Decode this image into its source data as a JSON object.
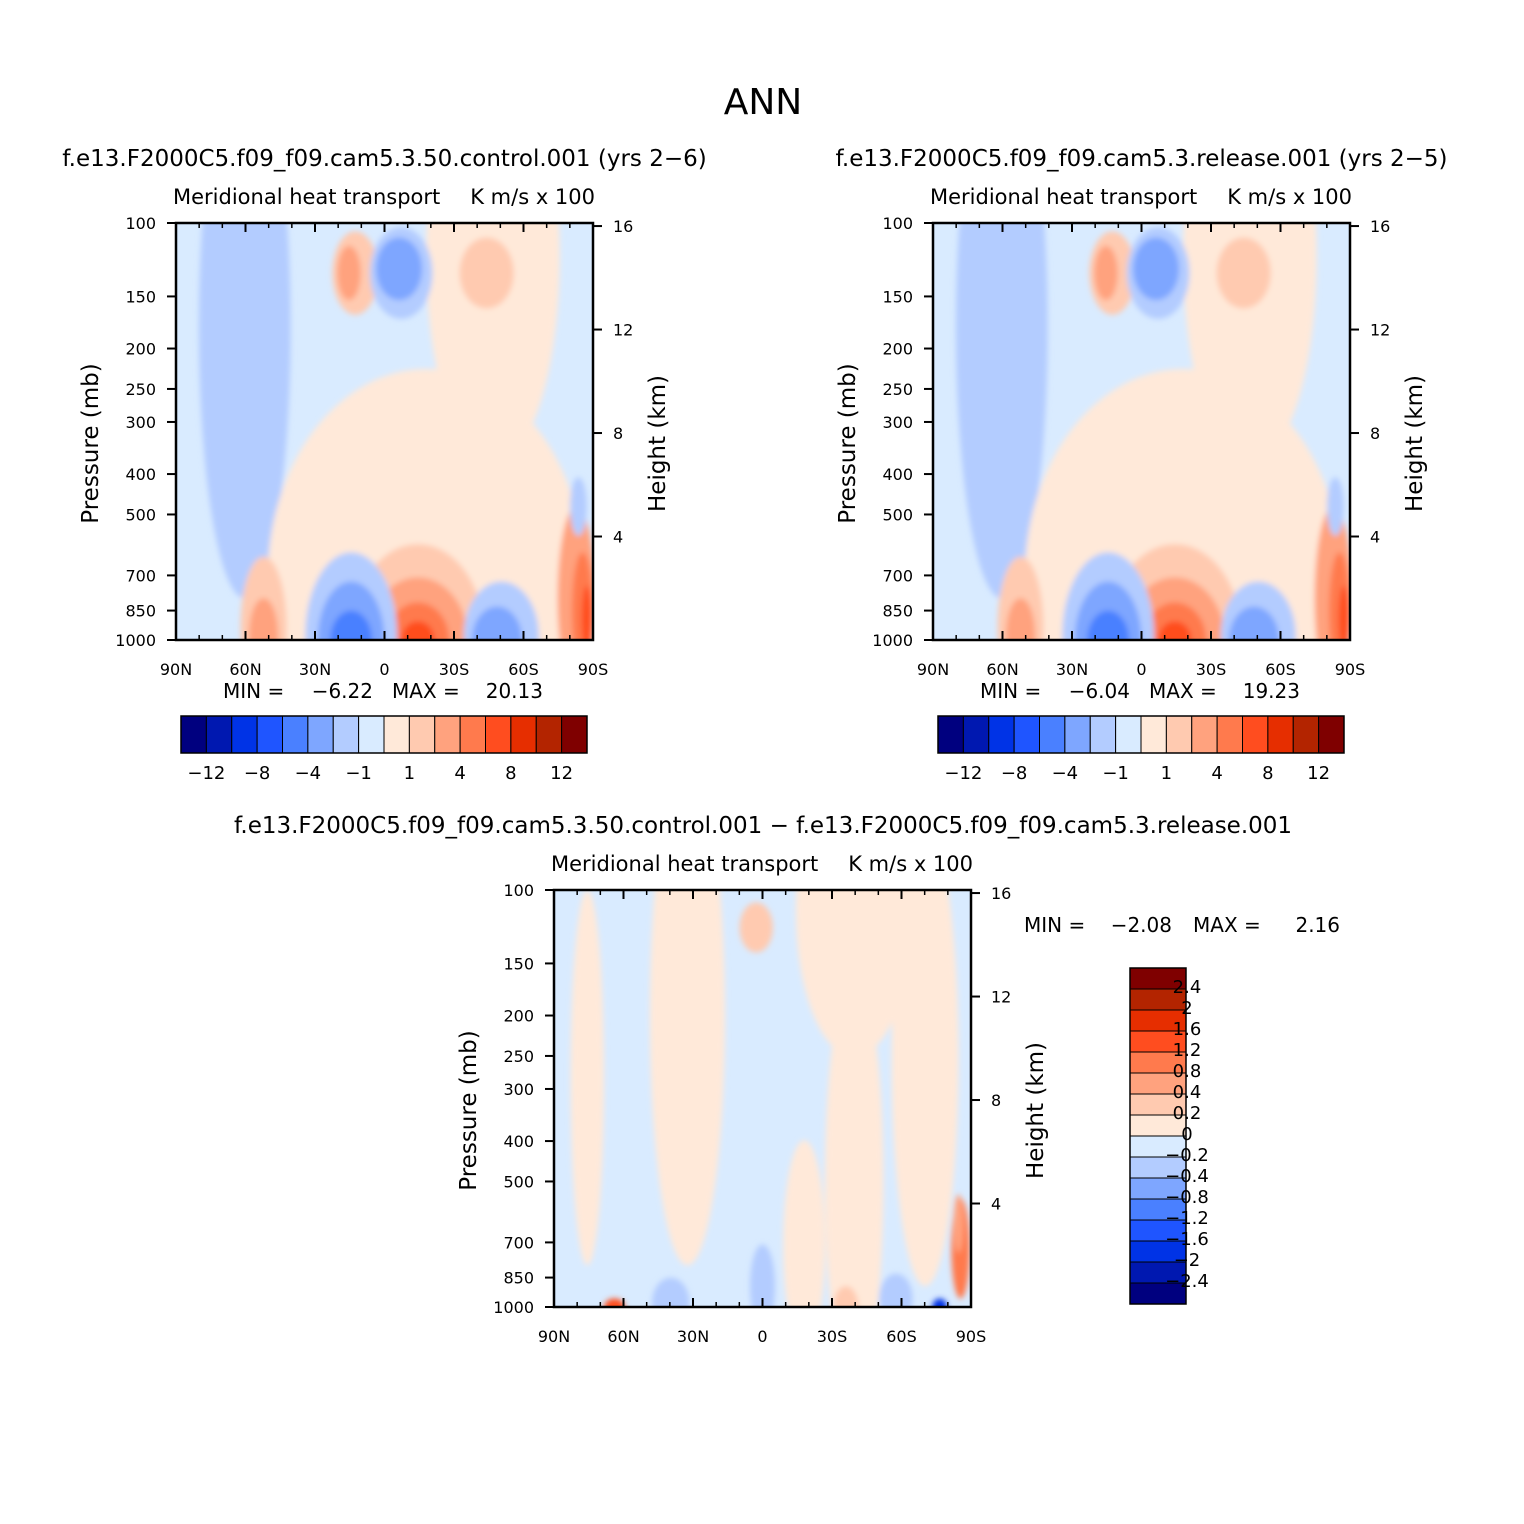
{
  "figure": {
    "title": "ANN"
  },
  "chart_data": [
    {
      "type": "heatmap",
      "title": "f.e13.F2000C5.f09_f09.cam5.3.50.control.001 (yrs 2−6)",
      "left_string": "Meridional heat transport",
      "right_string": "K m/s x 100",
      "ylabel": "Pressure (mb)",
      "y2label": "Height (km)",
      "x_ticks": [
        "90N",
        "60N",
        "30N",
        "0",
        "30S",
        "60S",
        "90S"
      ],
      "y_ticks": [
        "100",
        "150",
        "200",
        "250",
        "300",
        "400",
        "500",
        "700",
        "850",
        "1000"
      ],
      "y2_ticks": [
        "16",
        "12",
        "8",
        "4"
      ],
      "xlim": [
        "90N",
        "90S"
      ],
      "ylim": [
        100,
        1000
      ],
      "stats": {
        "min_label": "MIN =",
        "min": "−6.22",
        "max_label": "MAX =",
        "max": "20.13"
      },
      "levels": [
        -12,
        -8,
        -4,
        -1,
        1,
        4,
        8,
        12
      ],
      "colorbar_labels": [
        "−12",
        "−8",
        "−4",
        "−1",
        "1",
        "4",
        "8",
        "12"
      ],
      "legend_placement": "bottom"
    },
    {
      "type": "heatmap",
      "title": "f.e13.F2000C5.f09_f09.cam5.3.release.001 (yrs 2−5)",
      "left_string": "Meridional heat transport",
      "right_string": "K m/s x 100",
      "ylabel": "Pressure (mb)",
      "y2label": "Height (km)",
      "x_ticks": [
        "90N",
        "60N",
        "30N",
        "0",
        "30S",
        "60S",
        "90S"
      ],
      "y_ticks": [
        "100",
        "150",
        "200",
        "250",
        "300",
        "400",
        "500",
        "700",
        "850",
        "1000"
      ],
      "y2_ticks": [
        "16",
        "12",
        "8",
        "4"
      ],
      "xlim": [
        "90N",
        "90S"
      ],
      "ylim": [
        100,
        1000
      ],
      "stats": {
        "min_label": "MIN =",
        "min": "−6.04",
        "max_label": "MAX =",
        "max": "19.23"
      },
      "levels": [
        -12,
        -8,
        -4,
        -1,
        1,
        4,
        8,
        12
      ],
      "colorbar_labels": [
        "−12",
        "−8",
        "−4",
        "−1",
        "1",
        "4",
        "8",
        "12"
      ],
      "legend_placement": "bottom"
    },
    {
      "type": "heatmap",
      "title": "f.e13.F2000C5.f09_f09.cam5.3.50.control.001 − f.e13.F2000C5.f09_f09.cam5.3.release.001",
      "left_string": "Meridional heat transport",
      "right_string": "K m/s x 100",
      "ylabel": "Pressure (mb)",
      "y2label": "Height (km)",
      "x_ticks": [
        "90N",
        "60N",
        "30N",
        "0",
        "30S",
        "60S",
        "90S"
      ],
      "y_ticks": [
        "100",
        "150",
        "200",
        "250",
        "300",
        "400",
        "500",
        "700",
        "850",
        "1000"
      ],
      "y2_ticks": [
        "16",
        "12",
        "8",
        "4"
      ],
      "xlim": [
        "90N",
        "90S"
      ],
      "ylim": [
        100,
        1000
      ],
      "stats": {
        "min_label": "MIN =",
        "min": "−2.08",
        "max_label": "MAX =",
        "max": "2.16"
      },
      "levels": [
        2.4,
        2,
        1.6,
        1.2,
        0.8,
        0.4,
        0.2,
        0,
        -0.2,
        -0.4,
        -0.8,
        -1.2,
        -1.6,
        -2,
        -2.4
      ],
      "colorbar_labels": [
        "2.4",
        "2",
        "1.6",
        "1.2",
        "0.8",
        "0.4",
        "0.2",
        "0",
        "−0.2",
        "−0.4",
        "−0.8",
        "−1.2",
        "−1.6",
        "−2",
        "−2.4"
      ],
      "legend_placement": "right"
    }
  ],
  "colors": {
    "field_palette": [
      "#00007f",
      "#0018b0",
      "#0033e6",
      "#1f55ff",
      "#4a80ff",
      "#7ea6ff",
      "#b3ccff",
      "#d9ebff",
      "#ffe9d9",
      "#ffcab0",
      "#ffa27e",
      "#ff7a4d",
      "#ff4d1f",
      "#e62e00",
      "#b32400",
      "#7f0000"
    ],
    "diff_palette": [
      "#7f0000",
      "#b32400",
      "#e62e00",
      "#ff4d1f",
      "#ff7a4d",
      "#ffa27e",
      "#ffcab0",
      "#ffe9d9",
      "#d9ebff",
      "#b3ccff",
      "#7ea6ff",
      "#4a80ff",
      "#1f55ff",
      "#0033e6",
      "#0018b0",
      "#00007f"
    ]
  }
}
